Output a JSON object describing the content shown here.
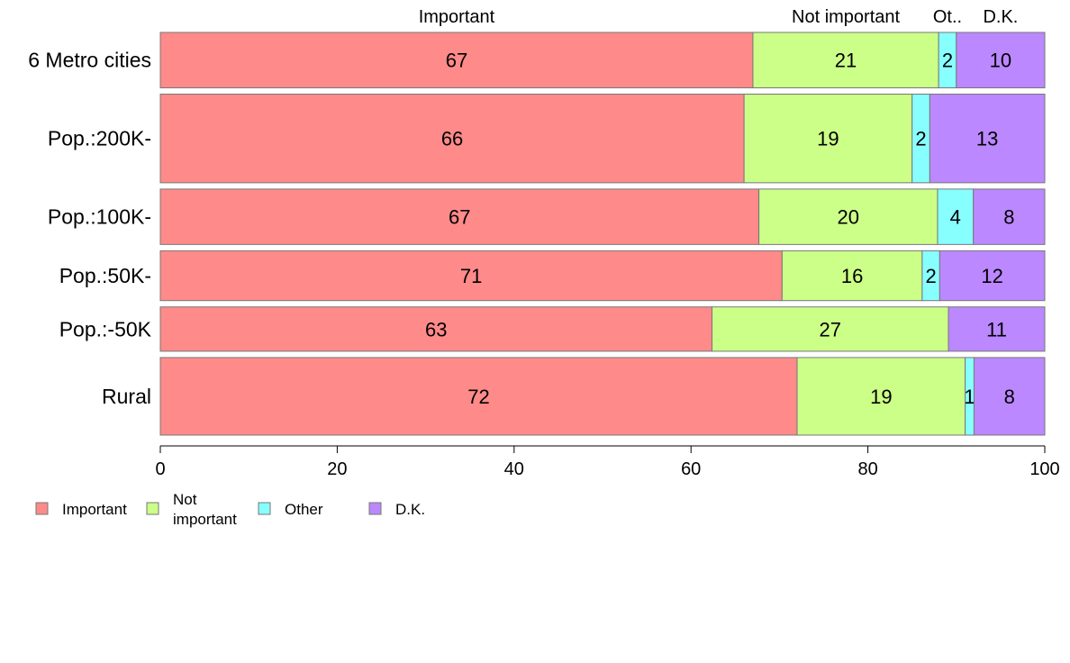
{
  "chart_data": {
    "type": "bar",
    "orientation": "horizontal",
    "stacked": true,
    "categories": [
      "6 Metro cities",
      "Pop.:200K-",
      "Pop.:100K-",
      "Pop.:50K-",
      "Pop.:-50K",
      "Rural"
    ],
    "series": [
      {
        "name": "Important",
        "color": "#FF8A8A",
        "values": [
          67,
          66,
          67,
          71,
          63,
          72
        ],
        "labels": [
          "67",
          "66",
          "67",
          "71",
          "63",
          "72"
        ]
      },
      {
        "name": "Not important",
        "color": "#CCFF88",
        "values": [
          21,
          19,
          20,
          16,
          27,
          19
        ],
        "labels": [
          "21",
          "19",
          "20",
          "16",
          "27",
          "19"
        ]
      },
      {
        "name": "Other",
        "color": "#88FFFF",
        "values": [
          2,
          2,
          4,
          2,
          0,
          1
        ],
        "labels": [
          "2",
          "2",
          "4",
          "2",
          "",
          "1"
        ]
      },
      {
        "name": "D.K.",
        "color": "#BB88FF",
        "values": [
          10,
          13,
          8,
          12,
          11,
          8
        ],
        "labels": [
          "10",
          "13",
          "8",
          "12",
          "11",
          "8"
        ]
      }
    ],
    "bar_weights": [
      1.0,
      1.6,
      1.0,
      0.9,
      0.8,
      1.4
    ],
    "top_labels": [
      "Important",
      "Not important",
      "Ot..",
      "D.K."
    ],
    "xlim": [
      0,
      100
    ],
    "xticks": [
      "0",
      "20",
      "40",
      "60",
      "80",
      "100"
    ],
    "legend": {
      "position": "bottom-left",
      "entries": [
        {
          "lines": [
            "Important"
          ],
          "color": "#FF8A8A"
        },
        {
          "lines": [
            "Not",
            "important"
          ],
          "color": "#CCFF88"
        },
        {
          "lines": [
            "Other"
          ],
          "color": "#88FFFF"
        },
        {
          "lines": [
            "D.K."
          ],
          "color": "#BB88FF"
        }
      ]
    },
    "grid": false
  }
}
